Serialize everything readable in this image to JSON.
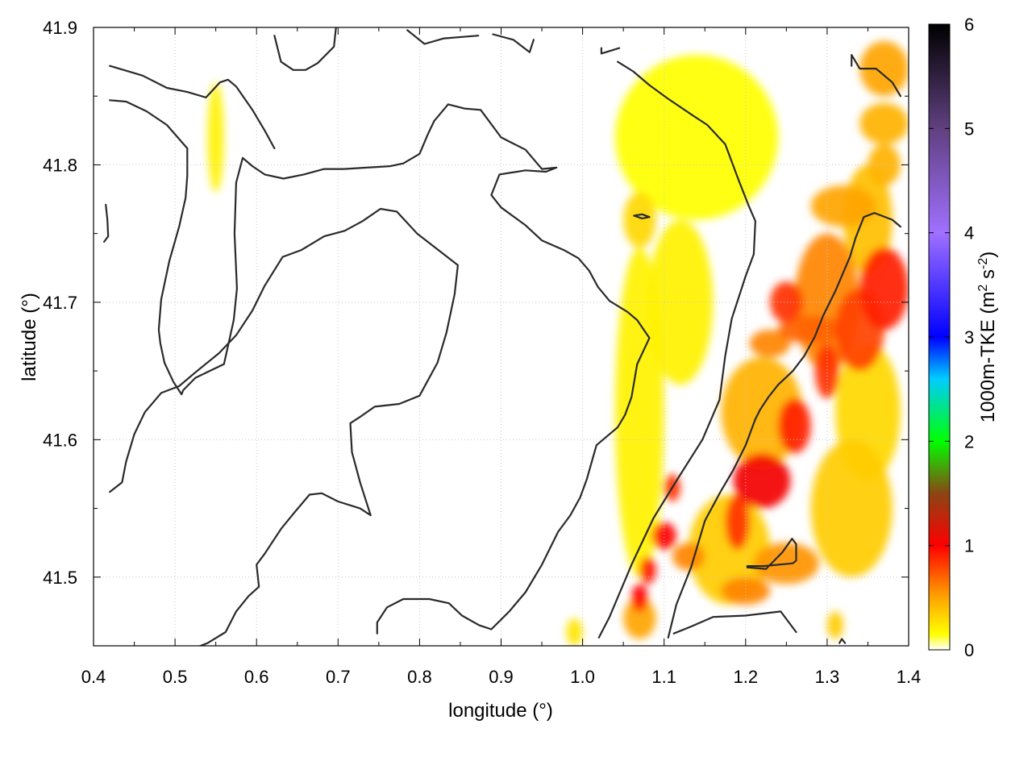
{
  "chart_data": {
    "type": "heatmap",
    "title": "",
    "xlabel": "longitude (°)",
    "ylabel": "latitude (°)",
    "xlim": [
      0.4,
      1.4
    ],
    "ylim": [
      41.45,
      41.9
    ],
    "x_ticks": [
      "0.4",
      "0.5",
      "0.6",
      "0.7",
      "0.8",
      "0.9",
      "1.0",
      "1.1",
      "1.2",
      "1.3",
      "1.4"
    ],
    "y_ticks": [
      "41.5",
      "41.6",
      "41.7",
      "41.8",
      "41.9"
    ],
    "grid": true,
    "colorbar": {
      "label": "1000m-TKE (m2 s-2)",
      "label_main": "1000m-TKE (m",
      "sup1": "2",
      "mid": " s",
      "sup2": "-2",
      "close": ")",
      "range": [
        0,
        6
      ],
      "ticks": [
        "0",
        "1",
        "2",
        "3",
        "4",
        "5",
        "6"
      ],
      "colormap": [
        [
          0.0,
          "#ffffff"
        ],
        [
          0.15,
          "#ffff00"
        ],
        [
          0.5,
          "#ffa500"
        ],
        [
          1.0,
          "#ff0000"
        ],
        [
          1.5,
          "#8b4513"
        ],
        [
          2.0,
          "#00ff00"
        ],
        [
          2.6,
          "#00ccff"
        ],
        [
          3.0,
          "#0000ff"
        ],
        [
          4.0,
          "#a070ff"
        ],
        [
          5.0,
          "#604080"
        ],
        [
          6.0,
          "#000000"
        ]
      ]
    },
    "tke_field": [
      {
        "lon": 1.14,
        "lat": 41.82,
        "value": 0.15,
        "slon": 0.1,
        "slat": 0.06
      },
      {
        "lon": 1.07,
        "lat": 41.76,
        "value": 0.3,
        "slon": 0.02,
        "slat": 0.02
      },
      {
        "lon": 1.07,
        "lat": 41.62,
        "value": 0.2,
        "slon": 0.03,
        "slat": 0.12
      },
      {
        "lon": 0.55,
        "lat": 41.82,
        "value": 0.2,
        "slon": 0.01,
        "slat": 0.04
      },
      {
        "lon": 1.37,
        "lat": 41.87,
        "value": 0.5,
        "slon": 0.03,
        "slat": 0.02
      },
      {
        "lon": 1.37,
        "lat": 41.83,
        "value": 0.45,
        "slon": 0.03,
        "slat": 0.015
      },
      {
        "lon": 1.37,
        "lat": 41.8,
        "value": 0.45,
        "slon": 0.02,
        "slat": 0.015
      },
      {
        "lon": 1.32,
        "lat": 41.77,
        "value": 0.5,
        "slon": 0.04,
        "slat": 0.015
      },
      {
        "lon": 1.37,
        "lat": 41.71,
        "value": 0.9,
        "slon": 0.03,
        "slat": 0.03
      },
      {
        "lon": 1.34,
        "lat": 41.68,
        "value": 0.8,
        "slon": 0.03,
        "slat": 0.03
      },
      {
        "lon": 1.3,
        "lat": 41.7,
        "value": 0.6,
        "slon": 0.04,
        "slat": 0.05
      },
      {
        "lon": 1.25,
        "lat": 41.7,
        "value": 0.85,
        "slon": 0.02,
        "slat": 0.015
      },
      {
        "lon": 1.28,
        "lat": 41.68,
        "value": 0.7,
        "slon": 0.04,
        "slat": 0.01
      },
      {
        "lon": 1.23,
        "lat": 41.67,
        "value": 0.6,
        "slon": 0.025,
        "slat": 0.01
      },
      {
        "lon": 1.3,
        "lat": 41.65,
        "value": 0.85,
        "slon": 0.015,
        "slat": 0.02
      },
      {
        "lon": 1.26,
        "lat": 41.61,
        "value": 0.9,
        "slon": 0.02,
        "slat": 0.02
      },
      {
        "lon": 1.22,
        "lat": 41.57,
        "value": 1.05,
        "slon": 0.035,
        "slat": 0.02
      },
      {
        "lon": 1.19,
        "lat": 41.54,
        "value": 0.85,
        "slon": 0.015,
        "slat": 0.02
      },
      {
        "lon": 1.11,
        "lat": 41.565,
        "value": 0.85,
        "slon": 0.01,
        "slat": 0.01
      },
      {
        "lon": 1.1,
        "lat": 41.53,
        "value": 1.0,
        "slon": 0.015,
        "slat": 0.01
      },
      {
        "lon": 1.08,
        "lat": 41.505,
        "value": 0.95,
        "slon": 0.01,
        "slat": 0.01
      },
      {
        "lon": 1.07,
        "lat": 41.485,
        "value": 1.0,
        "slon": 0.01,
        "slat": 0.01
      },
      {
        "lon": 1.13,
        "lat": 41.515,
        "value": 0.6,
        "slon": 0.02,
        "slat": 0.01
      },
      {
        "lon": 1.2,
        "lat": 41.49,
        "value": 0.6,
        "slon": 0.03,
        "slat": 0.01
      },
      {
        "lon": 1.25,
        "lat": 41.51,
        "value": 0.55,
        "slon": 0.04,
        "slat": 0.015
      },
      {
        "lon": 1.22,
        "lat": 41.62,
        "value": 0.45,
        "slon": 0.05,
        "slat": 0.04
      },
      {
        "lon": 1.18,
        "lat": 41.52,
        "value": 0.35,
        "slon": 0.05,
        "slat": 0.04
      },
      {
        "lon": 1.33,
        "lat": 41.55,
        "value": 0.35,
        "slon": 0.05,
        "slat": 0.05
      },
      {
        "lon": 1.35,
        "lat": 41.62,
        "value": 0.3,
        "slon": 0.04,
        "slat": 0.05
      },
      {
        "lon": 1.35,
        "lat": 41.76,
        "value": 0.4,
        "slon": 0.03,
        "slat": 0.04
      },
      {
        "lon": 1.07,
        "lat": 41.47,
        "value": 0.5,
        "slon": 0.02,
        "slat": 0.015
      },
      {
        "lon": 0.99,
        "lat": 41.46,
        "value": 0.25,
        "slon": 0.01,
        "slat": 0.01
      },
      {
        "lon": 1.31,
        "lat": 41.465,
        "value": 0.35,
        "slon": 0.01,
        "slat": 0.01
      },
      {
        "lon": 1.12,
        "lat": 41.7,
        "value": 0.2,
        "slon": 0.04,
        "slat": 0.06
      }
    ],
    "contours": [
      [
        [
          0.42,
          41.872
        ],
        [
          0.46,
          41.865
        ],
        [
          0.49,
          41.856
        ],
        [
          0.515,
          41.853
        ],
        [
          0.538,
          41.849
        ],
        [
          0.555,
          41.86
        ],
        [
          0.565,
          41.862
        ],
        [
          0.575,
          41.857
        ],
        [
          0.595,
          41.84
        ],
        [
          0.61,
          41.825
        ],
        [
          0.622,
          41.812
        ]
      ],
      [
        [
          0.42,
          41.847
        ],
        [
          0.44,
          41.846
        ],
        [
          0.465,
          41.839
        ],
        [
          0.49,
          41.829
        ],
        [
          0.515,
          41.812
        ],
        [
          0.515,
          41.792
        ],
        [
          0.513,
          41.776
        ],
        [
          0.505,
          41.755
        ],
        [
          0.493,
          41.73
        ],
        [
          0.483,
          41.702
        ],
        [
          0.48,
          41.68
        ],
        [
          0.482,
          41.67
        ],
        [
          0.487,
          41.656
        ],
        [
          0.498,
          41.642
        ],
        [
          0.508,
          41.633
        ],
        [
          0.51,
          41.636
        ],
        [
          0.525,
          41.645
        ],
        [
          0.56,
          41.655
        ],
        [
          0.572,
          41.687
        ],
        [
          0.576,
          41.71
        ],
        [
          0.573,
          41.75
        ],
        [
          0.575,
          41.787
        ],
        [
          0.583,
          41.805
        ],
        [
          0.595,
          41.799
        ],
        [
          0.61,
          41.793
        ],
        [
          0.633,
          41.79
        ],
        [
          0.658,
          41.793
        ],
        [
          0.683,
          41.797
        ],
        [
          0.707,
          41.797
        ],
        [
          0.735,
          41.798
        ],
        [
          0.764,
          41.799
        ],
        [
          0.78,
          41.801
        ],
        [
          0.8,
          41.808
        ],
        [
          0.81,
          41.822
        ],
        [
          0.818,
          41.832
        ],
        [
          0.835,
          41.844
        ],
        [
          0.855,
          41.841
        ],
        [
          0.875,
          41.84
        ],
        [
          0.9,
          41.82
        ],
        [
          0.93,
          41.811
        ],
        [
          0.95,
          41.797
        ],
        [
          0.968,
          41.798
        ],
        [
          0.955,
          41.795
        ],
        [
          0.93,
          41.796
        ],
        [
          0.898,
          41.793
        ],
        [
          0.888,
          41.778
        ],
        [
          0.9,
          41.769
        ],
        [
          0.93,
          41.756
        ],
        [
          0.95,
          41.745
        ],
        [
          0.977,
          41.738
        ],
        [
          0.995,
          41.732
        ],
        [
          1.008,
          41.723
        ],
        [
          1.019,
          41.711
        ],
        [
          1.033,
          41.701
        ],
        [
          1.055,
          41.693
        ],
        [
          1.067,
          41.687
        ],
        [
          1.082,
          41.674
        ],
        [
          1.067,
          41.655
        ],
        [
          1.06,
          41.631
        ],
        [
          1.052,
          41.618
        ],
        [
          1.043,
          41.609
        ],
        [
          1.017,
          41.596
        ],
        [
          1.005,
          41.571
        ],
        [
          0.997,
          41.558
        ],
        [
          0.985,
          41.545
        ],
        [
          0.97,
          41.533
        ],
        [
          0.95,
          41.509
        ],
        [
          0.93,
          41.489
        ],
        [
          0.91,
          41.475
        ],
        [
          0.888,
          41.462
        ],
        [
          0.873,
          41.465
        ],
        [
          0.852,
          41.472
        ],
        [
          0.836,
          41.481
        ],
        [
          0.812,
          41.484
        ],
        [
          0.78,
          41.484
        ],
        [
          0.76,
          41.478
        ],
        [
          0.748,
          41.467
        ],
        [
          0.748,
          41.459
        ]
      ],
      [
        [
          0.42,
          41.562
        ],
        [
          0.435,
          41.569
        ],
        [
          0.44,
          41.584
        ],
        [
          0.45,
          41.604
        ],
        [
          0.463,
          41.62
        ],
        [
          0.483,
          41.634
        ],
        [
          0.505,
          41.639
        ],
        [
          0.525,
          41.649
        ],
        [
          0.554,
          41.663
        ],
        [
          0.575,
          41.676
        ],
        [
          0.595,
          41.694
        ],
        [
          0.61,
          41.712
        ],
        [
          0.632,
          41.733
        ],
        [
          0.655,
          41.738
        ],
        [
          0.683,
          41.748
        ],
        [
          0.708,
          41.752
        ],
        [
          0.73,
          41.759
        ],
        [
          0.752,
          41.768
        ],
        [
          0.772,
          41.766
        ],
        [
          0.797,
          41.75
        ],
        [
          0.823,
          41.738
        ],
        [
          0.847,
          41.727
        ],
        [
          0.843,
          41.706
        ],
        [
          0.833,
          41.678
        ],
        [
          0.822,
          41.656
        ],
        [
          0.8,
          41.632
        ],
        [
          0.775,
          41.626
        ],
        [
          0.745,
          41.624
        ],
        [
          0.728,
          41.617
        ],
        [
          0.715,
          41.612
        ],
        [
          0.717,
          41.591
        ],
        [
          0.727,
          41.569
        ],
        [
          0.74,
          41.545
        ],
        [
          0.727,
          41.55
        ],
        [
          0.7,
          41.555
        ],
        [
          0.68,
          41.561
        ],
        [
          0.665,
          41.56
        ],
        [
          0.645,
          41.546
        ],
        [
          0.63,
          41.535
        ],
        [
          0.61,
          41.517
        ],
        [
          0.6,
          41.509
        ],
        [
          0.603,
          41.493
        ],
        [
          0.59,
          41.486
        ],
        [
          0.575,
          41.475
        ],
        [
          0.562,
          41.46
        ],
        [
          0.54,
          41.452
        ],
        [
          0.523,
          41.448
        ]
      ],
      [
        [
          0.415,
          41.771
        ],
        [
          0.417,
          41.76
        ],
        [
          0.418,
          41.748
        ],
        [
          0.413,
          41.744
        ]
      ],
      [
        [
          0.622,
          41.894
        ],
        [
          0.63,
          41.875
        ],
        [
          0.645,
          41.869
        ],
        [
          0.66,
          41.869
        ],
        [
          0.675,
          41.874
        ],
        [
          0.695,
          41.886
        ],
        [
          0.698,
          41.903
        ]
      ],
      [
        [
          0.785,
          41.898
        ],
        [
          0.806,
          41.888
        ],
        [
          0.83,
          41.892
        ],
        [
          0.872,
          41.894
        ]
      ],
      [
        [
          0.89,
          41.895
        ],
        [
          0.915,
          41.891
        ],
        [
          0.935,
          41.882
        ],
        [
          0.94,
          41.891
        ]
      ],
      [
        [
          1.023,
          41.885
        ],
        [
          1.023,
          41.881
        ],
        [
          1.045,
          41.885
        ]
      ],
      [
        [
          1.063,
          41.763
        ],
        [
          1.073,
          41.764
        ],
        [
          1.082,
          41.762
        ],
        [
          1.073,
          41.761
        ],
        [
          1.063,
          41.763
        ]
      ],
      [
        [
          1.02,
          41.456
        ],
        [
          1.033,
          41.471
        ],
        [
          1.06,
          41.509
        ],
        [
          1.087,
          41.543
        ],
        [
          1.115,
          41.57
        ],
        [
          1.147,
          41.6
        ],
        [
          1.168,
          41.629
        ],
        [
          1.175,
          41.661
        ],
        [
          1.183,
          41.688
        ],
        [
          1.2,
          41.719
        ],
        [
          1.21,
          41.735
        ],
        [
          1.212,
          41.759
        ],
        [
          1.204,
          41.77
        ],
        [
          1.192,
          41.788
        ],
        [
          1.175,
          41.815
        ],
        [
          1.153,
          41.829
        ],
        [
          1.135,
          41.836
        ],
        [
          1.105,
          41.848
        ],
        [
          1.082,
          41.858
        ],
        [
          1.062,
          41.868
        ],
        [
          1.043,
          41.875
        ]
      ],
      [
        [
          1.112,
          41.459
        ],
        [
          1.133,
          41.464
        ],
        [
          1.16,
          41.471
        ],
        [
          1.2,
          41.472
        ],
        [
          1.243,
          41.475
        ],
        [
          1.262,
          41.46
        ]
      ],
      [
        [
          1.202,
          41.508
        ],
        [
          1.222,
          41.508
        ],
        [
          1.258,
          41.51
        ],
        [
          1.262,
          41.512
        ],
        [
          1.262,
          41.524
        ],
        [
          1.257,
          41.528
        ],
        [
          1.245,
          41.518
        ],
        [
          1.225,
          41.506
        ],
        [
          1.202,
          41.507
        ]
      ],
      [
        [
          1.33,
          41.872
        ],
        [
          1.33,
          41.88
        ],
        [
          1.34,
          41.87
        ],
        [
          1.36,
          41.87
        ],
        [
          1.38,
          41.86
        ],
        [
          1.39,
          41.85
        ]
      ],
      [
        [
          1.105,
          41.456
        ],
        [
          1.115,
          41.48
        ],
        [
          1.133,
          41.507
        ],
        [
          1.15,
          41.541
        ],
        [
          1.17,
          41.563
        ],
        [
          1.185,
          41.578
        ],
        [
          1.2,
          41.596
        ],
        [
          1.212,
          41.615
        ],
        [
          1.218,
          41.622
        ],
        [
          1.228,
          41.631
        ],
        [
          1.24,
          41.64
        ],
        [
          1.258,
          41.65
        ],
        [
          1.272,
          41.661
        ],
        [
          1.285,
          41.675
        ],
        [
          1.295,
          41.69
        ],
        [
          1.31,
          41.708
        ],
        [
          1.328,
          41.733
        ],
        [
          1.335,
          41.747
        ],
        [
          1.345,
          41.762
        ],
        [
          1.358,
          41.765
        ],
        [
          1.38,
          41.76
        ],
        [
          1.39,
          41.755
        ]
      ],
      [
        [
          1.315,
          41.452
        ],
        [
          1.318,
          41.455
        ],
        [
          1.322,
          41.452
        ]
      ]
    ]
  }
}
